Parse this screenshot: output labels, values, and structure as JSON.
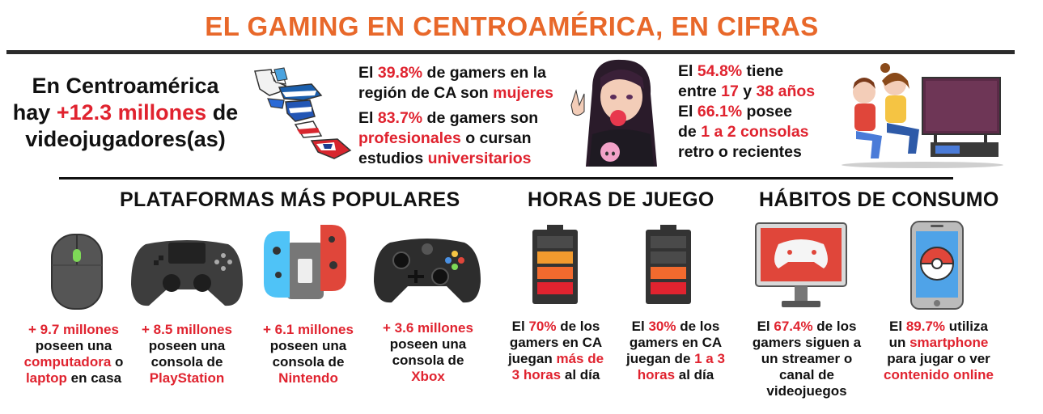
{
  "title": "EL GAMING EN CENTROAMÉRICA, EN CIFRAS",
  "intro": {
    "l1": "En Centroamérica",
    "l2a": "hay ",
    "l2b": "+12.3 millones",
    "l2c": " de",
    "l3": "videojugadores(as)"
  },
  "stats_mid": {
    "s1a": "El ",
    "s1b": "39.8%",
    "s1c": " de gamers en la",
    "s2a": "región de CA son ",
    "s2b": "mujeres",
    "s3a": "El ",
    "s3b": "83.7%",
    "s3c": " de gamers son",
    "s4a": "profesionales",
    "s4b": " o cursan",
    "s5a": "estudios ",
    "s5b": "universitarios"
  },
  "stats_right": {
    "s1a": "El ",
    "s1b": "54.8%",
    "s1c": " tiene",
    "s2a": "entre ",
    "s2b": "17",
    "s2c": " y ",
    "s2d": "38 años",
    "s3a": "El ",
    "s3b": "66.1%",
    "s3c": " posee",
    "s4a": "de ",
    "s4b": "1 a 2 consolas",
    "s5": "retro o recientes"
  },
  "sections": {
    "platforms": "PLATAFORMAS MÁS POPULARES",
    "hours": "HORAS DE JUEGO",
    "habits": "HÁBITOS DE CONSUMO"
  },
  "platforms": [
    {
      "icon": "mouse-icon",
      "l1": "+ 9.7 millones",
      "l2": "poseen una",
      "l3": "computadora",
      "l3b": " o",
      "l4": "laptop",
      "l4b": " en casa"
    },
    {
      "icon": "playstation-controller-icon",
      "l1": "+ 8.5 millones",
      "l2": "poseen una",
      "l3": "consola de",
      "l4": "PlayStation"
    },
    {
      "icon": "nintendo-switch-icon",
      "l1": "+ 6.1 millones",
      "l2": "poseen una",
      "l3": "consola de",
      "l4": "Nintendo"
    },
    {
      "icon": "xbox-controller-icon",
      "l1": "+ 3.6 millones",
      "l2": "poseen una",
      "l3": "consola de",
      "l4": "Xbox"
    }
  ],
  "hours": [
    {
      "icon": "battery-icon",
      "level": 3,
      "l1a": "El ",
      "l1b": "70%",
      "l1c": " de los",
      "l2": "gamers en CA",
      "l3a": "juegan ",
      "l3b": "más de",
      "l4a": "3 horas",
      "l4b": " al día"
    },
    {
      "icon": "battery-icon",
      "level": 2,
      "l1a": "El ",
      "l1b": "30%",
      "l1c": " de los",
      "l2": "gamers en CA",
      "l3a": "juegan de ",
      "l3b": "1 a 3",
      "l4a": "horas",
      "l4b": " al día"
    }
  ],
  "habits": [
    {
      "icon": "monitor-streaming-icon",
      "l1a": "El ",
      "l1b": "67.4%",
      "l1c": " de los",
      "l2": "gamers siguen a",
      "l3": "un streamer o",
      "l4": "canal de",
      "l5": "videojuegos"
    },
    {
      "icon": "smartphone-pokeball-icon",
      "l1a": "El ",
      "l1b": "89.7%",
      "l1c": " utiliza",
      "l2a": "un ",
      "l2b": "smartphone",
      "l3": "para jugar o ver",
      "l4": "contenido online"
    }
  ],
  "colors": {
    "orange": "#e8682a",
    "red": "#e0232f",
    "dark": "#2b2b2b"
  }
}
